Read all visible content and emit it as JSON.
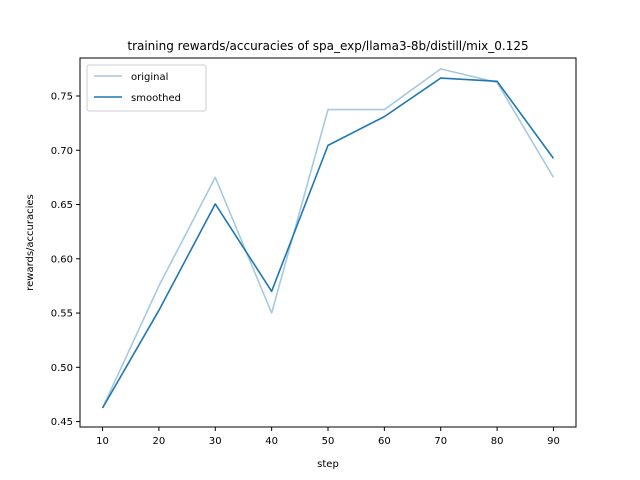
{
  "chart_data": {
    "type": "line",
    "title": "training rewards/accuracies of spa_exp/llama3-8b/distill/mix_0.125",
    "xlabel": "step",
    "ylabel": "rewards/accuracies",
    "x": [
      10,
      20,
      30,
      40,
      50,
      60,
      70,
      80,
      90
    ],
    "xlim": [
      6,
      94
    ],
    "ylim": [
      0.445,
      0.785
    ],
    "xticks": [
      10,
      20,
      30,
      40,
      50,
      60,
      70,
      80,
      90
    ],
    "yticks": [
      0.45,
      0.5,
      0.55,
      0.6,
      0.65,
      0.7,
      0.75
    ],
    "yticklabels": [
      "0.45",
      "0.50",
      "0.55",
      "0.60",
      "0.65",
      "0.70",
      "0.75"
    ],
    "grid": false,
    "legend": "top-left",
    "series": [
      {
        "name": "original",
        "color": "#a6c9e1",
        "values": [
          0.4625,
          0.575,
          0.675,
          0.55,
          0.7375,
          0.7375,
          0.775,
          0.7625,
          0.675
        ]
      },
      {
        "name": "smoothed",
        "color": "#1f77b4",
        "values": [
          0.4625,
          0.5525,
          0.6505,
          0.57,
          0.7045,
          0.731,
          0.7665,
          0.7635,
          0.6925
        ]
      }
    ]
  }
}
